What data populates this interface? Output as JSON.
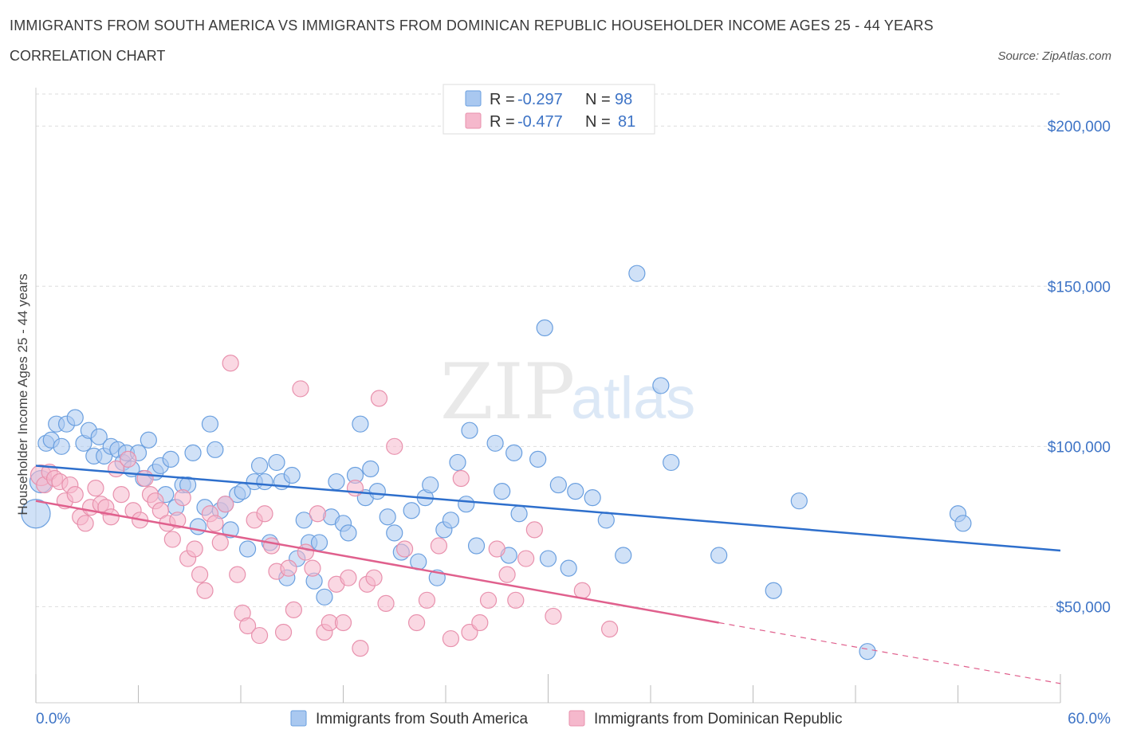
{
  "title": "IMMIGRANTS FROM SOUTH AMERICA VS IMMIGRANTS FROM DOMINICAN REPUBLIC HOUSEHOLDER INCOME AGES 25 - 44 YEARS",
  "subtitle": "CORRELATION CHART",
  "source": "Source: ZipAtlas.com",
  "watermark": {
    "zip": "ZIP",
    "atlas": "atlas"
  },
  "colors": {
    "blue_fill": "#a9c8f0",
    "blue_stroke": "#6a9fdf",
    "blue_line": "#2e6fcc",
    "pink_fill": "#f5b8cc",
    "pink_stroke": "#e891ad",
    "pink_line": "#e0608d",
    "tick_text": "#3e74c6",
    "grid": "#dddddd"
  },
  "legend_top": [
    {
      "r_label": "R = ",
      "r_value": "-0.297",
      "n_label": "N = ",
      "n_value": "98"
    },
    {
      "r_label": "R = ",
      "r_value": "-0.477",
      "n_label": "N = ",
      "n_value": "81"
    }
  ],
  "chart_data": {
    "type": "scatter",
    "xlabel": "",
    "ylabel": "Householder Income Ages 25 - 44 years",
    "xlim": [
      0,
      60
    ],
    "ylim": [
      20000,
      210000
    ],
    "x_tick_labels": [
      "0.0%",
      "60.0%"
    ],
    "y_ticks": [
      50000,
      100000,
      150000,
      200000
    ],
    "y_tick_labels": [
      "$50,000",
      "$100,000",
      "$150,000",
      "$200,000"
    ],
    "grid": true,
    "legend_position": "bottom",
    "series": [
      {
        "name": "Immigrants from South America",
        "trend": {
          "x": [
            0,
            60
          ],
          "y": [
            94000,
            67500
          ],
          "dash_from": null
        },
        "points": [
          [
            0.0,
            79000
          ],
          [
            0.3,
            89000
          ],
          [
            0.6,
            101000
          ],
          [
            0.9,
            102000
          ],
          [
            1.2,
            107000
          ],
          [
            1.5,
            100000
          ],
          [
            1.8,
            107000
          ],
          [
            2.3,
            109000
          ],
          [
            2.8,
            101000
          ],
          [
            3.1,
            105000
          ],
          [
            3.4,
            97000
          ],
          [
            3.7,
            103000
          ],
          [
            4.0,
            97000
          ],
          [
            4.4,
            100000
          ],
          [
            4.8,
            99000
          ],
          [
            5.1,
            95000
          ],
          [
            5.3,
            98000
          ],
          [
            5.6,
            93000
          ],
          [
            6.0,
            98000
          ],
          [
            6.3,
            90000
          ],
          [
            6.6,
            102000
          ],
          [
            7.0,
            92000
          ],
          [
            7.3,
            94000
          ],
          [
            7.6,
            85000
          ],
          [
            7.9,
            96000
          ],
          [
            8.2,
            81000
          ],
          [
            8.6,
            88000
          ],
          [
            8.9,
            88000
          ],
          [
            9.2,
            98000
          ],
          [
            9.5,
            75000
          ],
          [
            9.9,
            81000
          ],
          [
            10.2,
            107000
          ],
          [
            10.5,
            99000
          ],
          [
            10.8,
            80000
          ],
          [
            11.1,
            82000
          ],
          [
            11.4,
            74000
          ],
          [
            11.8,
            85000
          ],
          [
            12.1,
            86000
          ],
          [
            12.4,
            68000
          ],
          [
            12.8,
            89000
          ],
          [
            13.1,
            94000
          ],
          [
            13.4,
            89000
          ],
          [
            13.7,
            70000
          ],
          [
            14.1,
            95000
          ],
          [
            14.4,
            89000
          ],
          [
            14.7,
            59000
          ],
          [
            15.0,
            91000
          ],
          [
            15.3,
            65000
          ],
          [
            15.7,
            77000
          ],
          [
            16.0,
            70000
          ],
          [
            16.3,
            58000
          ],
          [
            16.6,
            70000
          ],
          [
            16.9,
            53000
          ],
          [
            17.3,
            78000
          ],
          [
            17.6,
            89000
          ],
          [
            18.0,
            76000
          ],
          [
            18.3,
            73000
          ],
          [
            18.7,
            91000
          ],
          [
            19.0,
            107000
          ],
          [
            19.3,
            84000
          ],
          [
            19.6,
            93000
          ],
          [
            20.0,
            86000
          ],
          [
            20.6,
            78000
          ],
          [
            21.0,
            73000
          ],
          [
            21.4,
            67000
          ],
          [
            22.0,
            80000
          ],
          [
            22.4,
            64000
          ],
          [
            22.8,
            84000
          ],
          [
            23.1,
            88000
          ],
          [
            23.5,
            59000
          ],
          [
            23.9,
            74000
          ],
          [
            24.3,
            77000
          ],
          [
            24.7,
            95000
          ],
          [
            25.2,
            82000
          ],
          [
            25.4,
            105000
          ],
          [
            25.8,
            69000
          ],
          [
            26.9,
            101000
          ],
          [
            27.3,
            86000
          ],
          [
            27.7,
            66000
          ],
          [
            28.0,
            98000
          ],
          [
            28.3,
            79000
          ],
          [
            29.4,
            96000
          ],
          [
            29.8,
            137000
          ],
          [
            30.0,
            65000
          ],
          [
            30.6,
            88000
          ],
          [
            31.2,
            62000
          ],
          [
            31.6,
            86000
          ],
          [
            32.6,
            84000
          ],
          [
            33.4,
            77000
          ],
          [
            34.4,
            66000
          ],
          [
            35.2,
            154000
          ],
          [
            36.6,
            119000
          ],
          [
            37.2,
            95000
          ],
          [
            40.0,
            66000
          ],
          [
            43.2,
            55000
          ],
          [
            44.7,
            83000
          ],
          [
            48.7,
            36000
          ],
          [
            54.0,
            79000
          ],
          [
            54.3,
            76000
          ]
        ]
      },
      {
        "name": "Immigrants from Dominican Republic",
        "trend": {
          "x": [
            0,
            60
          ],
          "y": [
            83000,
            26000
          ],
          "dash_from": 40
        },
        "points": [
          [
            0.3,
            91000
          ],
          [
            0.5,
            88000
          ],
          [
            0.8,
            92000
          ],
          [
            1.1,
            90000
          ],
          [
            1.4,
            89000
          ],
          [
            1.7,
            83000
          ],
          [
            2.0,
            88000
          ],
          [
            2.3,
            85000
          ],
          [
            2.6,
            78000
          ],
          [
            2.9,
            76000
          ],
          [
            3.2,
            81000
          ],
          [
            3.5,
            87000
          ],
          [
            3.8,
            82000
          ],
          [
            4.1,
            81000
          ],
          [
            4.4,
            78000
          ],
          [
            4.7,
            93000
          ],
          [
            5.0,
            85000
          ],
          [
            5.4,
            96000
          ],
          [
            5.7,
            80000
          ],
          [
            6.1,
            77000
          ],
          [
            6.4,
            90000
          ],
          [
            6.7,
            85000
          ],
          [
            7.0,
            83000
          ],
          [
            7.3,
            80000
          ],
          [
            7.7,
            76000
          ],
          [
            8.0,
            71000
          ],
          [
            8.3,
            77000
          ],
          [
            8.6,
            84000
          ],
          [
            8.9,
            65000
          ],
          [
            9.3,
            68000
          ],
          [
            9.6,
            60000
          ],
          [
            9.9,
            55000
          ],
          [
            10.2,
            79000
          ],
          [
            10.5,
            76000
          ],
          [
            10.8,
            70000
          ],
          [
            11.1,
            82000
          ],
          [
            11.4,
            126000
          ],
          [
            11.8,
            60000
          ],
          [
            12.1,
            48000
          ],
          [
            12.4,
            44000
          ],
          [
            12.8,
            77000
          ],
          [
            13.1,
            41000
          ],
          [
            13.4,
            79000
          ],
          [
            13.8,
            69000
          ],
          [
            14.1,
            61000
          ],
          [
            14.5,
            42000
          ],
          [
            14.8,
            62000
          ],
          [
            15.1,
            49000
          ],
          [
            15.5,
            118000
          ],
          [
            15.8,
            67000
          ],
          [
            16.2,
            62000
          ],
          [
            16.5,
            79000
          ],
          [
            16.9,
            42000
          ],
          [
            17.2,
            45000
          ],
          [
            17.6,
            57000
          ],
          [
            18.0,
            45000
          ],
          [
            18.3,
            59000
          ],
          [
            18.7,
            87000
          ],
          [
            19.0,
            37000
          ],
          [
            19.4,
            57000
          ],
          [
            19.8,
            59000
          ],
          [
            20.1,
            115000
          ],
          [
            20.5,
            51000
          ],
          [
            21.0,
            100000
          ],
          [
            21.6,
            68000
          ],
          [
            22.3,
            45000
          ],
          [
            22.9,
            52000
          ],
          [
            23.6,
            69000
          ],
          [
            24.3,
            40000
          ],
          [
            24.9,
            90000
          ],
          [
            25.4,
            42000
          ],
          [
            26.0,
            45000
          ],
          [
            26.5,
            52000
          ],
          [
            27.0,
            68000
          ],
          [
            27.6,
            60000
          ],
          [
            28.1,
            52000
          ],
          [
            28.7,
            65000
          ],
          [
            29.2,
            74000
          ],
          [
            30.3,
            47000
          ],
          [
            32.0,
            55000
          ],
          [
            33.6,
            43000
          ]
        ]
      }
    ]
  }
}
